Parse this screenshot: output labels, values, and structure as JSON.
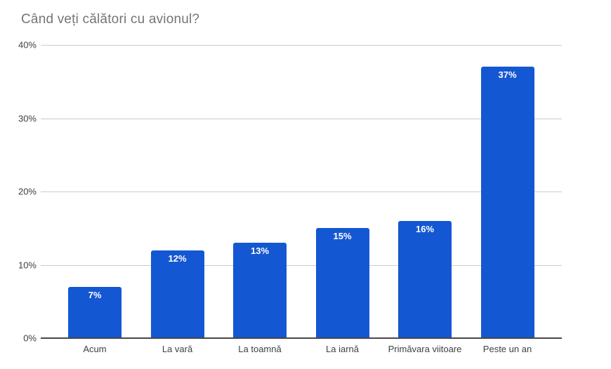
{
  "chart": {
    "title": "Când veți călători cu avionul?"
  },
  "chart_data": {
    "type": "bar",
    "title": "Când veți călători cu avionul?",
    "categories": [
      "Acum",
      "La vară",
      "La toamnă",
      "La iarnă",
      "Primăvara viitoare",
      "Peste un an"
    ],
    "values": [
      7,
      12,
      13,
      15,
      16,
      37
    ],
    "value_labels": [
      "7%",
      "12%",
      "13%",
      "15%",
      "16%",
      "37%"
    ],
    "xlabel": "",
    "ylabel": "",
    "ylim": [
      0,
      40
    ],
    "yticks": [
      {
        "value": 0,
        "label": "0%"
      },
      {
        "value": 10,
        "label": "10%"
      },
      {
        "value": 20,
        "label": "20%"
      },
      {
        "value": 30,
        "label": "30%"
      },
      {
        "value": 40,
        "label": "40%"
      }
    ],
    "grid": true,
    "legend": "none",
    "colors": {
      "bar": "#1457d2",
      "title": "#757575",
      "tick_label": "#3c4043",
      "category_label": "#3c4043",
      "gridline": "#cccccc",
      "axis_line": "#474747",
      "value_label": "#ffffff",
      "background": "#ffffff"
    }
  }
}
